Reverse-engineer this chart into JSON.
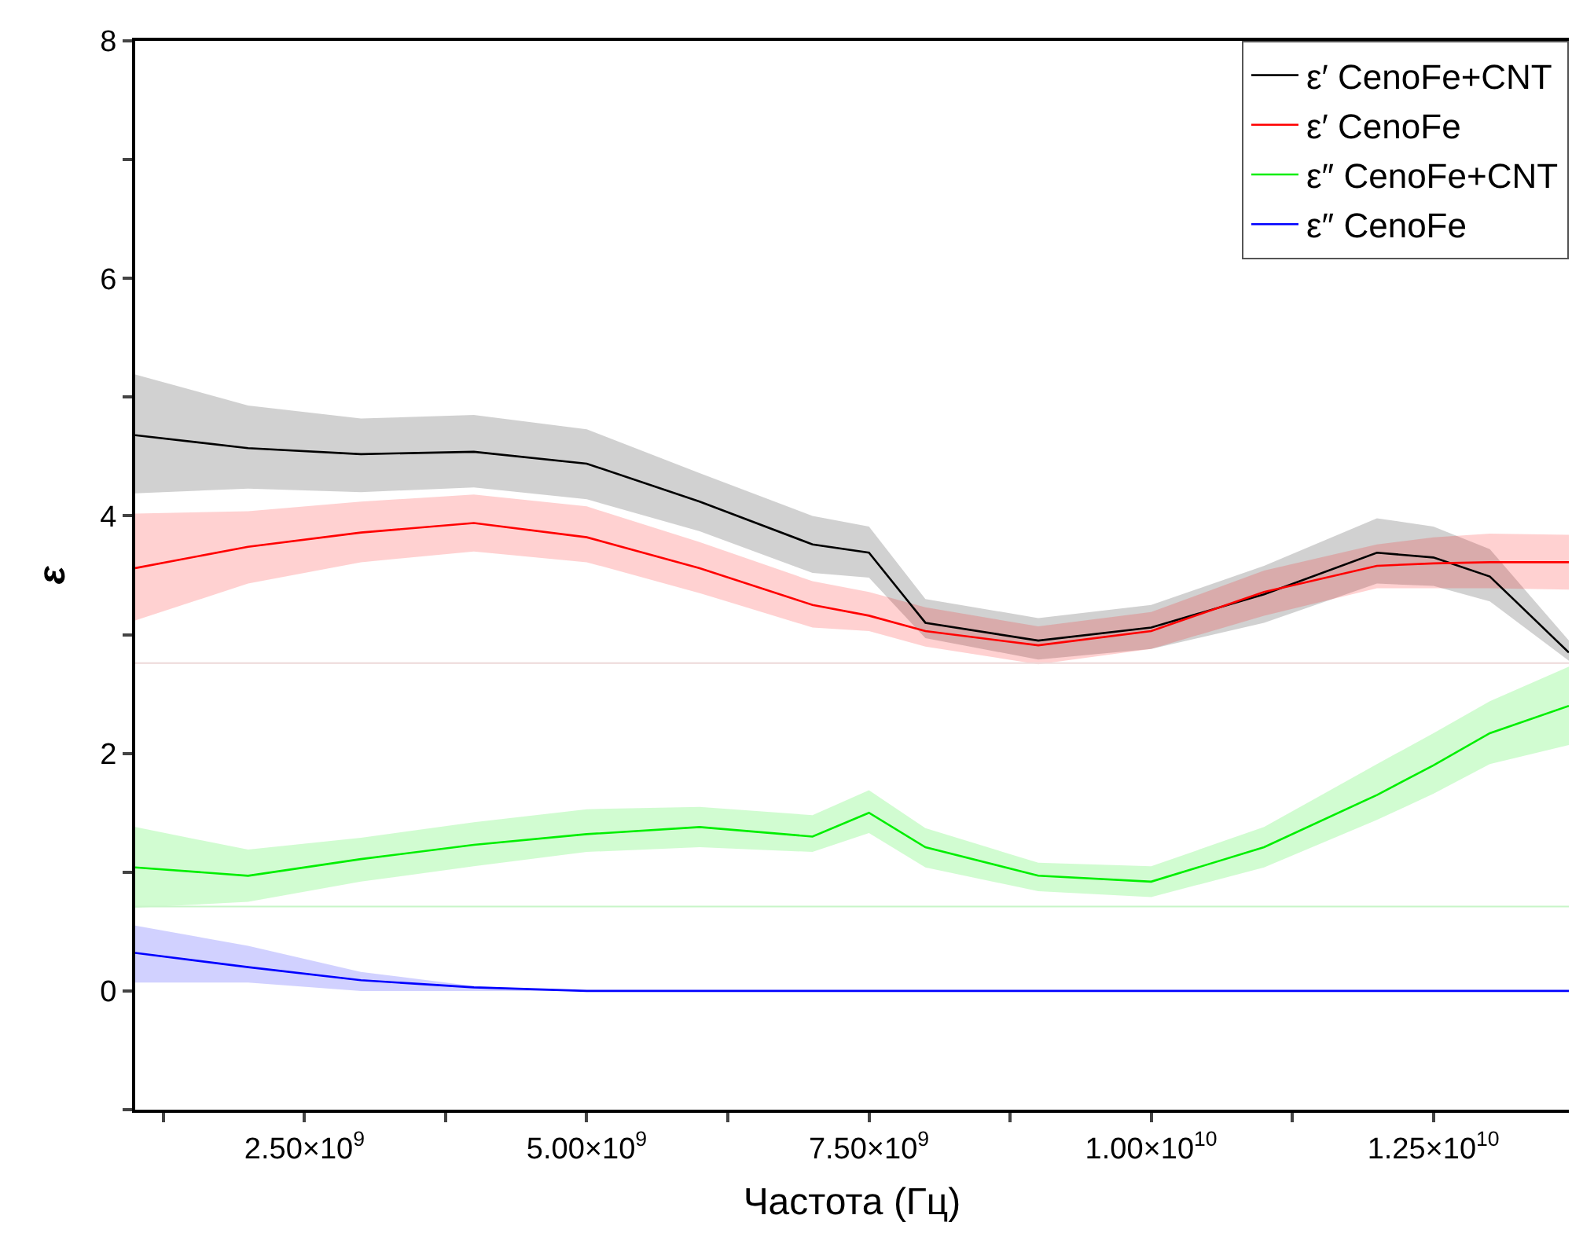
{
  "chart_data": {
    "type": "line",
    "xlabel": "Частота (Гц)",
    "ylabel": "ε",
    "x": [
      1000000000.0,
      2000000000.0,
      3000000000.0,
      4000000000.0,
      5000000000.0,
      6000000000.0,
      7000000000.0,
      7500000000.0,
      8000000000.0,
      9000000000.0,
      10000000000.0,
      11000000000.0,
      12000000000.0,
      12500000000.0,
      13000000000.0,
      13700000000.0
    ],
    "series": [
      {
        "name": "ε′ CenoFe+CNT",
        "color": "#000000",
        "values": [
          4.68,
          4.57,
          4.52,
          4.54,
          4.44,
          4.12,
          3.76,
          3.69,
          3.1,
          2.95,
          3.06,
          3.34,
          3.69,
          3.65,
          3.49,
          2.85
        ],
        "lower": [
          4.19,
          4.23,
          4.2,
          4.24,
          4.14,
          3.87,
          3.52,
          3.48,
          2.97,
          2.79,
          2.88,
          3.1,
          3.43,
          3.41,
          3.28,
          2.78
        ],
        "upper": [
          5.19,
          4.93,
          4.82,
          4.85,
          4.73,
          4.36,
          4.0,
          3.91,
          3.3,
          3.14,
          3.25,
          3.58,
          3.98,
          3.91,
          3.72,
          2.95
        ]
      },
      {
        "name": "ε′ CenoFe",
        "color": "#ff0000",
        "values": [
          3.56,
          3.74,
          3.86,
          3.94,
          3.82,
          3.56,
          3.25,
          3.16,
          3.03,
          2.91,
          3.03,
          3.36,
          3.58,
          3.6,
          3.61,
          3.61
        ],
        "lower": [
          3.12,
          3.43,
          3.61,
          3.7,
          3.61,
          3.35,
          3.06,
          3.03,
          2.9,
          2.75,
          2.88,
          3.16,
          3.39,
          3.39,
          3.39,
          3.38
        ],
        "upper": [
          4.02,
          4.04,
          4.12,
          4.18,
          4.08,
          3.78,
          3.45,
          3.36,
          3.23,
          3.07,
          3.19,
          3.54,
          3.76,
          3.82,
          3.85,
          3.84
        ]
      },
      {
        "name": "ε″ CenoFe+CNT",
        "color": "#00ee00",
        "values": [
          1.04,
          0.97,
          1.11,
          1.23,
          1.32,
          1.38,
          1.3,
          1.5,
          1.21,
          0.97,
          0.92,
          1.21,
          1.65,
          1.9,
          2.17,
          2.4
        ],
        "lower": [
          0.7,
          0.75,
          0.92,
          1.05,
          1.17,
          1.21,
          1.17,
          1.33,
          1.04,
          0.84,
          0.79,
          1.04,
          1.44,
          1.66,
          1.91,
          2.07
        ],
        "upper": [
          1.38,
          1.19,
          1.29,
          1.42,
          1.53,
          1.55,
          1.48,
          1.69,
          1.37,
          1.08,
          1.05,
          1.38,
          1.91,
          2.17,
          2.44,
          2.73
        ]
      },
      {
        "name": "ε″ CenoFe",
        "color": "#0000ff",
        "values": [
          0.32,
          0.2,
          0.09,
          0.03,
          0,
          0,
          0,
          0,
          0,
          0,
          0,
          0,
          0,
          0,
          0,
          0
        ],
        "lower": [
          0.07,
          0.07,
          0,
          0,
          0,
          0,
          0,
          0,
          0,
          0,
          0,
          0,
          0,
          0,
          0,
          0
        ],
        "upper": [
          0.55,
          0.38,
          0.16,
          0.04,
          0,
          0,
          0,
          0,
          0,
          0,
          0,
          0,
          0,
          0,
          0,
          0
        ]
      }
    ],
    "xlim": [
      1000000000.0,
      13700000000.0
    ],
    "xticks": [
      {
        "value": 1250000000.0,
        "label": null
      },
      {
        "value": 2500000000.0,
        "label": "2.50×10$^{9}$"
      },
      {
        "value": 3750000000.0,
        "label": null
      },
      {
        "value": 5000000000.0,
        "label": "5.00×10$^{9}$"
      },
      {
        "value": 6250000000.0,
        "label": null
      },
      {
        "value": 7500000000.0,
        "label": "7.50×10$^{9}$"
      },
      {
        "value": 8750000000.0,
        "label": null
      },
      {
        "value": 10000000000.0,
        "label": "1.00×10$^{10}$"
      },
      {
        "value": 11250000000.0,
        "label": null
      },
      {
        "value": 12500000000.0,
        "label": "1.25×10$^{10}$"
      }
    ],
    "ylim": [
      -1,
      8
    ],
    "yticks": [
      {
        "value": -1,
        "label": null
      },
      0,
      {
        "value": 1,
        "label": null
      },
      2,
      {
        "value": 3,
        "label": null
      },
      4,
      {
        "value": 5,
        "label": null
      },
      6,
      {
        "value": 7,
        "label": null
      },
      8
    ],
    "ref_lines": [
      {
        "axis": "y",
        "value": 2.76,
        "color": "#ecd8d8"
      },
      {
        "axis": "y",
        "value": 0.71,
        "color": "#c8f5c8"
      }
    ],
    "legend": "top right",
    "marker": "none",
    "line_style": "solid"
  }
}
